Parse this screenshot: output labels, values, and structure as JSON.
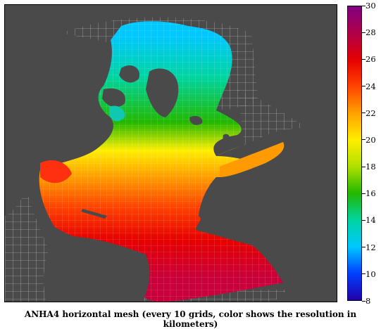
{
  "caption": "ANHA4 horizontal mesh (every 10 grids, color shows the resolution in kilometers)",
  "colorbar": {
    "min": 8,
    "max": 30,
    "ticks": [
      "8",
      "10",
      "12",
      "14",
      "16",
      "18",
      "20",
      "22",
      "24",
      "26",
      "28",
      "30"
    ],
    "colormap": [
      "#2200aa",
      "#0040ff",
      "#00c8ff",
      "#00d4a0",
      "#22b800",
      "#b0e000",
      "#ffee00",
      "#ffa200",
      "#ff4400",
      "#e60000",
      "#b0004a",
      "#800080"
    ]
  },
  "map_colors": {
    "land": "#4a4a4a",
    "ocean_outside_mesh": "#ffffff",
    "grid_lines": "#bdbdbd"
  }
}
